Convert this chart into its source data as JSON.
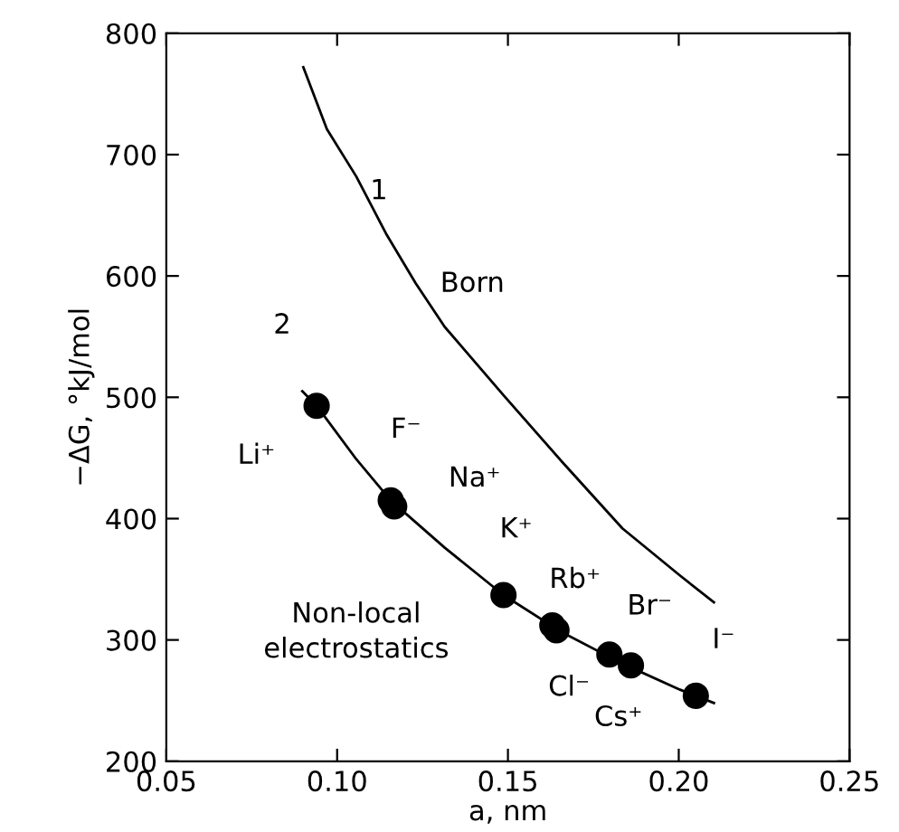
{
  "chart_data": {
    "type": "scatter",
    "xlabel": "a, nm",
    "ylabel": "−ΔG, °kJ/mol",
    "xlim": [
      0.05,
      0.25
    ],
    "ylim": [
      200,
      800
    ],
    "xticks": [
      {
        "value": 0.05,
        "label": "0.05"
      },
      {
        "value": 0.1,
        "label": "0.10"
      },
      {
        "value": 0.15,
        "label": "0.15"
      },
      {
        "value": 0.2,
        "label": "0.20"
      },
      {
        "value": 0.25,
        "label": "0.25"
      }
    ],
    "yticks": [
      200,
      300,
      400,
      500,
      600,
      700,
      800
    ],
    "grid": false,
    "legend": false,
    "series": [
      {
        "type": "line",
        "color": "#000000",
        "marker": "none",
        "line_style": "solid",
        "x": [
          0.0901,
          0.097,
          0.1056,
          0.1143,
          0.123,
          0.1315,
          0.1489,
          0.1661,
          0.1835,
          0.2004,
          0.2103
        ],
        "values": [
          772,
          721,
          682,
          635,
          594,
          558,
          501,
          446,
          392,
          353,
          331
        ]
      },
      {
        "type": "line",
        "color": "#000000",
        "marker": "none",
        "line_style": "solid",
        "x": [
          0.0898,
          0.094,
          0.1056,
          0.1157,
          0.1315,
          0.1487,
          0.166,
          0.1831,
          0.2004,
          0.2103
        ],
        "values": [
          505,
          493,
          449,
          415,
          376,
          337,
          306,
          281,
          259,
          248
        ]
      },
      {
        "color": "#000000",
        "marker": "circle",
        "x": [
          0.094,
          0.1157,
          0.1167,
          0.1487,
          0.163,
          0.1642,
          0.1797,
          0.186,
          0.205
        ],
        "values": [
          493,
          415,
          410,
          337,
          312,
          308,
          288,
          279,
          254
        ]
      }
    ],
    "annotations": [
      {
        "text": "Li⁺",
        "x": 0.094,
        "y": 493
      },
      {
        "text": "F⁻",
        "x": 0.1157,
        "y": 415
      },
      {
        "text": "Na⁺",
        "x": 0.1167,
        "y": 410
      },
      {
        "text": "K⁺",
        "x": 0.1487,
        "y": 337
      },
      {
        "text": "Rb⁺",
        "x": 0.163,
        "y": 312
      },
      {
        "text": "Cl⁻",
        "x": 0.1642,
        "y": 308
      },
      {
        "text": "Br⁻",
        "x": 0.1797,
        "y": 288
      },
      {
        "text": "Cs⁺",
        "x": 0.186,
        "y": 279
      },
      {
        "text": "I⁻",
        "x": 0.205,
        "y": 254
      },
      {
        "text": "1",
        "x": 0.1056,
        "y": 682
      },
      {
        "text": "Born",
        "x": 0.1315,
        "y": 558
      },
      {
        "text": "2",
        "x": 0.0898,
        "y": 505
      },
      "Non-local\nelectrostatics"
    ]
  }
}
